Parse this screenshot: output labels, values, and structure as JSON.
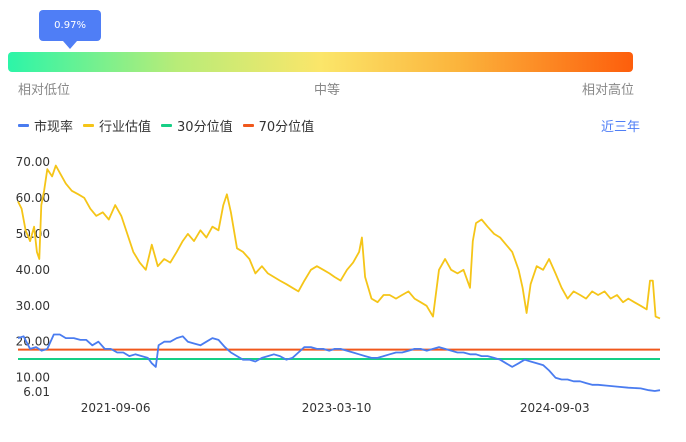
{
  "gauge": {
    "marker_value": 0.0097,
    "marker_label": "0.97%",
    "labels": {
      "low": "相对低位",
      "mid": "中等",
      "high": "相对高位"
    }
  },
  "legend": [
    {
      "label": "市现率",
      "color": "#4a7cf0"
    },
    {
      "label": "行业估值",
      "color": "#f5c518"
    },
    {
      "label": "30分位值",
      "color": "#17cf86"
    },
    {
      "label": "70分位值",
      "color": "#f0581c"
    }
  ],
  "range_button": "近三年",
  "chart_data": {
    "type": "line",
    "title": "",
    "xlabel": "",
    "ylabel": "",
    "ylim": [
      6.01,
      70
    ],
    "y_ticks": [
      "6.01",
      "10.00",
      "20.00",
      "30.00",
      "40.00",
      "50.00",
      "60.00",
      "70.00"
    ],
    "y_tick_values": [
      6.01,
      10,
      20,
      30,
      40,
      50,
      60,
      70
    ],
    "x_ticks": [
      "2021-09-06",
      "2023-03-10",
      "2024-09-03"
    ],
    "x_tick_dates": [
      "2021-09-06",
      "2023-03-10",
      "2024-09-03"
    ],
    "x_range": [
      "2021-01-06",
      "2025-05-23"
    ],
    "series": [
      {
        "name": "市现率",
        "color": "#4a7cf0",
        "points": [
          [
            "2021-01-06",
            21
          ],
          [
            "2021-01-20",
            21.5
          ],
          [
            "2021-02-05",
            18
          ],
          [
            "2021-02-20",
            18.5
          ],
          [
            "2021-03-06",
            17.5
          ],
          [
            "2021-03-20",
            18
          ],
          [
            "2021-04-05",
            22
          ],
          [
            "2021-04-20",
            22
          ],
          [
            "2021-05-05",
            21
          ],
          [
            "2021-05-25",
            21
          ],
          [
            "2021-06-10",
            20.5
          ],
          [
            "2021-06-25",
            20.5
          ],
          [
            "2021-07-10",
            19
          ],
          [
            "2021-07-25",
            20
          ],
          [
            "2021-08-10",
            18
          ],
          [
            "2021-08-25",
            18
          ],
          [
            "2021-09-10",
            17
          ],
          [
            "2021-09-25",
            17
          ],
          [
            "2021-10-10",
            16
          ],
          [
            "2021-10-25",
            16.5
          ],
          [
            "2021-11-10",
            16
          ],
          [
            "2021-11-25",
            15.5
          ],
          [
            "2021-12-05",
            14
          ],
          [
            "2021-12-15",
            13
          ],
          [
            "2021-12-22",
            19
          ],
          [
            "2022-01-05",
            20
          ],
          [
            "2022-01-20",
            20
          ],
          [
            "2022-02-05",
            21
          ],
          [
            "2022-02-20",
            21.5
          ],
          [
            "2022-03-05",
            20
          ],
          [
            "2022-03-20",
            19.5
          ],
          [
            "2022-04-05",
            19
          ],
          [
            "2022-04-20",
            20
          ],
          [
            "2022-05-05",
            21
          ],
          [
            "2022-05-20",
            20.5
          ],
          [
            "2022-06-05",
            18.5
          ],
          [
            "2022-06-20",
            17
          ],
          [
            "2022-07-05",
            16
          ],
          [
            "2022-07-20",
            15
          ],
          [
            "2022-08-05",
            15
          ],
          [
            "2022-08-20",
            14.5
          ],
          [
            "2022-09-05",
            15.5
          ],
          [
            "2022-09-20",
            16
          ],
          [
            "2022-10-05",
            16.5
          ],
          [
            "2022-10-20",
            16
          ],
          [
            "2022-11-05",
            15
          ],
          [
            "2022-11-20",
            15.5
          ],
          [
            "2022-12-05",
            17
          ],
          [
            "2022-12-20",
            18.5
          ],
          [
            "2023-01-05",
            18.5
          ],
          [
            "2023-01-20",
            18
          ],
          [
            "2023-02-05",
            18
          ],
          [
            "2023-02-20",
            17.5
          ],
          [
            "2023-03-05",
            18
          ],
          [
            "2023-03-20",
            18
          ],
          [
            "2023-04-05",
            17.5
          ],
          [
            "2023-04-20",
            17
          ],
          [
            "2023-05-05",
            16.5
          ],
          [
            "2023-05-20",
            16
          ],
          [
            "2023-06-05",
            15.5
          ],
          [
            "2023-06-20",
            15.5
          ],
          [
            "2023-07-05",
            16
          ],
          [
            "2023-07-20",
            16.5
          ],
          [
            "2023-08-05",
            17
          ],
          [
            "2023-08-20",
            17
          ],
          [
            "2023-09-05",
            17.5
          ],
          [
            "2023-09-20",
            18
          ],
          [
            "2023-10-05",
            18
          ],
          [
            "2023-10-20",
            17.5
          ],
          [
            "2023-11-05",
            18
          ],
          [
            "2023-11-20",
            18.5
          ],
          [
            "2023-12-05",
            18
          ],
          [
            "2023-12-20",
            17.5
          ],
          [
            "2024-01-05",
            17
          ],
          [
            "2024-01-20",
            17
          ],
          [
            "2024-02-05",
            16.5
          ],
          [
            "2024-02-20",
            16.5
          ],
          [
            "2024-03-05",
            16
          ],
          [
            "2024-03-20",
            16
          ],
          [
            "2024-04-05",
            15.5
          ],
          [
            "2024-04-20",
            15
          ],
          [
            "2024-05-05",
            14
          ],
          [
            "2024-05-20",
            13
          ],
          [
            "2024-06-05",
            14
          ],
          [
            "2024-06-20",
            15
          ],
          [
            "2024-07-05",
            14.5
          ],
          [
            "2024-07-20",
            14
          ],
          [
            "2024-08-05",
            13.5
          ],
          [
            "2024-08-20",
            12
          ],
          [
            "2024-09-05",
            10
          ],
          [
            "2024-09-20",
            9.5
          ],
          [
            "2024-10-05",
            9.5
          ],
          [
            "2024-10-20",
            9
          ],
          [
            "2024-11-05",
            9
          ],
          [
            "2024-11-20",
            8.5
          ],
          [
            "2024-12-05",
            8
          ],
          [
            "2024-12-20",
            8
          ],
          [
            "2025-01-10",
            7.8
          ],
          [
            "2025-02-05",
            7.5
          ],
          [
            "2025-03-05",
            7.2
          ],
          [
            "2025-04-05",
            7
          ],
          [
            "2025-04-25",
            6.5
          ],
          [
            "2025-05-10",
            6.3
          ],
          [
            "2025-05-23",
            6.5
          ]
        ]
      },
      {
        "name": "行业估值",
        "color": "#f5c518",
        "points": [
          [
            "2021-01-06",
            59
          ],
          [
            "2021-01-15",
            57
          ],
          [
            "2021-01-25",
            51
          ],
          [
            "2021-02-05",
            48
          ],
          [
            "2021-02-15",
            52
          ],
          [
            "2021-02-22",
            45
          ],
          [
            "2021-02-28",
            43
          ],
          [
            "2021-03-05",
            58
          ],
          [
            "2021-03-12",
            62
          ],
          [
            "2021-03-20",
            68
          ],
          [
            "2021-04-01",
            66
          ],
          [
            "2021-04-10",
            69
          ],
          [
            "2021-04-20",
            67
          ],
          [
            "2021-05-05",
            64
          ],
          [
            "2021-05-20",
            62
          ],
          [
            "2021-06-05",
            61
          ],
          [
            "2021-06-20",
            60
          ],
          [
            "2021-07-05",
            57
          ],
          [
            "2021-07-20",
            55
          ],
          [
            "2021-08-05",
            56
          ],
          [
            "2021-08-20",
            54
          ],
          [
            "2021-09-05",
            58
          ],
          [
            "2021-09-20",
            55
          ],
          [
            "2021-10-05",
            50
          ],
          [
            "2021-10-20",
            45
          ],
          [
            "2021-11-05",
            42
          ],
          [
            "2021-11-20",
            40
          ],
          [
            "2021-12-05",
            47
          ],
          [
            "2021-12-20",
            41
          ],
          [
            "2022-01-05",
            43
          ],
          [
            "2022-01-20",
            42
          ],
          [
            "2022-02-05",
            45
          ],
          [
            "2022-02-20",
            48
          ],
          [
            "2022-03-05",
            50
          ],
          [
            "2022-03-20",
            48
          ],
          [
            "2022-04-05",
            51
          ],
          [
            "2022-04-20",
            49
          ],
          [
            "2022-05-05",
            52
          ],
          [
            "2022-05-20",
            51
          ],
          [
            "2022-06-01",
            58
          ],
          [
            "2022-06-10",
            61
          ],
          [
            "2022-06-20",
            56
          ],
          [
            "2022-07-05",
            46
          ],
          [
            "2022-07-20",
            45
          ],
          [
            "2022-08-05",
            43
          ],
          [
            "2022-08-20",
            39
          ],
          [
            "2022-09-05",
            41
          ],
          [
            "2022-09-20",
            39
          ],
          [
            "2022-10-05",
            38
          ],
          [
            "2022-10-20",
            37
          ],
          [
            "2022-11-05",
            36
          ],
          [
            "2022-11-20",
            35
          ],
          [
            "2022-12-05",
            34
          ],
          [
            "2022-12-20",
            37
          ],
          [
            "2023-01-05",
            40
          ],
          [
            "2023-01-20",
            41
          ],
          [
            "2023-02-05",
            40
          ],
          [
            "2023-02-20",
            39
          ],
          [
            "2023-03-05",
            38
          ],
          [
            "2023-03-20",
            37
          ],
          [
            "2023-04-05",
            40
          ],
          [
            "2023-04-20",
            42
          ],
          [
            "2023-05-05",
            45
          ],
          [
            "2023-05-12",
            49
          ],
          [
            "2023-05-20",
            38
          ],
          [
            "2023-06-05",
            32
          ],
          [
            "2023-06-20",
            31
          ],
          [
            "2023-07-05",
            33
          ],
          [
            "2023-07-20",
            33
          ],
          [
            "2023-08-05",
            32
          ],
          [
            "2023-08-20",
            33
          ],
          [
            "2023-09-05",
            34
          ],
          [
            "2023-09-20",
            32
          ],
          [
            "2023-10-05",
            31
          ],
          [
            "2023-10-20",
            30
          ],
          [
            "2023-11-05",
            27
          ],
          [
            "2023-11-20",
            40
          ],
          [
            "2023-12-05",
            43
          ],
          [
            "2023-12-20",
            40
          ],
          [
            "2024-01-05",
            39
          ],
          [
            "2024-01-20",
            40
          ],
          [
            "2024-02-05",
            35
          ],
          [
            "2024-02-12",
            48
          ],
          [
            "2024-02-20",
            53
          ],
          [
            "2024-03-05",
            54
          ],
          [
            "2024-03-20",
            52
          ],
          [
            "2024-04-05",
            50
          ],
          [
            "2024-04-20",
            49
          ],
          [
            "2024-05-05",
            47
          ],
          [
            "2024-05-20",
            45
          ],
          [
            "2024-06-05",
            40
          ],
          [
            "2024-06-15",
            35
          ],
          [
            "2024-06-25",
            28
          ],
          [
            "2024-07-05",
            36
          ],
          [
            "2024-07-20",
            41
          ],
          [
            "2024-08-05",
            40
          ],
          [
            "2024-08-20",
            43
          ],
          [
            "2024-09-05",
            39
          ],
          [
            "2024-09-20",
            35
          ],
          [
            "2024-10-05",
            32
          ],
          [
            "2024-10-20",
            34
          ],
          [
            "2024-11-05",
            33
          ],
          [
            "2024-11-20",
            32
          ],
          [
            "2024-12-05",
            34
          ],
          [
            "2024-12-20",
            33
          ],
          [
            "2025-01-05",
            34
          ],
          [
            "2025-01-20",
            32
          ],
          [
            "2025-02-05",
            33
          ],
          [
            "2025-02-20",
            31
          ],
          [
            "2025-03-05",
            32
          ],
          [
            "2025-03-20",
            31
          ],
          [
            "2025-04-05",
            30
          ],
          [
            "2025-04-20",
            29
          ],
          [
            "2025-04-28",
            37
          ],
          [
            "2025-05-05",
            37
          ],
          [
            "2025-05-12",
            27
          ],
          [
            "2025-05-23",
            26.5
          ]
        ]
      },
      {
        "name": "30分位值",
        "color": "#17cf86",
        "points": [
          [
            "2021-01-06",
            15.2
          ],
          [
            "2025-05-23",
            15.2
          ]
        ]
      },
      {
        "name": "70分位值",
        "color": "#f0581c",
        "points": [
          [
            "2021-01-06",
            17.8
          ],
          [
            "2025-05-23",
            17.8
          ]
        ]
      }
    ]
  }
}
